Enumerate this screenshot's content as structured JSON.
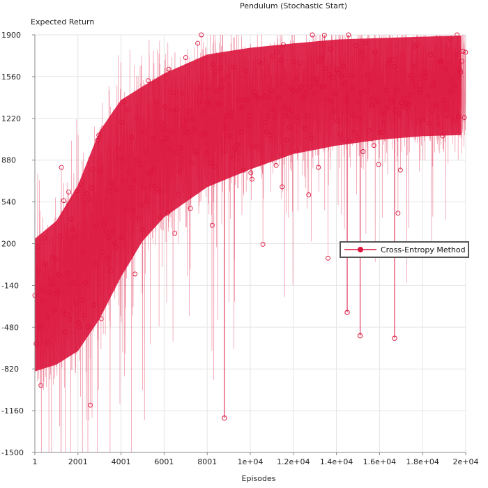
{
  "chart_data": {
    "type": "line",
    "title": "Pendulum (Stochastic Start)",
    "xlabel": "Episodes",
    "ylabel": "Expected Return",
    "xlim": [
      1,
      20000
    ],
    "ylim": [
      -1500,
      1900
    ],
    "x_tick_values": [
      1,
      2001,
      4001,
      6001,
      8001,
      10000,
      12000,
      14000,
      16000,
      18000,
      20000
    ],
    "x_tick_labels": [
      "1",
      "2001",
      "4001",
      "6001",
      "8001",
      "1e+04",
      "1.2e+04",
      "1.4e+04",
      "1.6e+04",
      "1.8e+04",
      "2e+04"
    ],
    "y_tick_values": [
      1900,
      1560,
      1220,
      880,
      540,
      200,
      -140,
      -480,
      -820,
      -1160,
      -1500
    ],
    "y_tick_labels": [
      "1900",
      "1560",
      "1220",
      "880",
      "540",
      "200",
      "-140",
      "-480",
      "-820",
      "-1160",
      "-1500"
    ],
    "grid": true,
    "legend_position": "right",
    "series": [
      {
        "name": "Cross-Entropy Method",
        "color": "#dc143c",
        "marker": "circle",
        "trend": {
          "x": [
            1,
            1000,
            2000,
            3000,
            4000,
            5000,
            6000,
            8000,
            10000,
            12000,
            14000,
            16000,
            18000,
            20000
          ],
          "mean": [
            -300,
            -200,
            0,
            350,
            650,
            850,
            1000,
            1200,
            1300,
            1380,
            1430,
            1460,
            1480,
            1490
          ],
          "spread": [
            600,
            650,
            750,
            850,
            800,
            700,
            650,
            600,
            550,
            500,
            480,
            460,
            450,
            450
          ]
        },
        "outliers": [
          {
            "x": 8800,
            "y": -1220
          },
          {
            "x": 15100,
            "y": -550
          },
          {
            "x": 14500,
            "y": -360
          },
          {
            "x": 16700,
            "y": -570
          }
        ]
      }
    ]
  }
}
